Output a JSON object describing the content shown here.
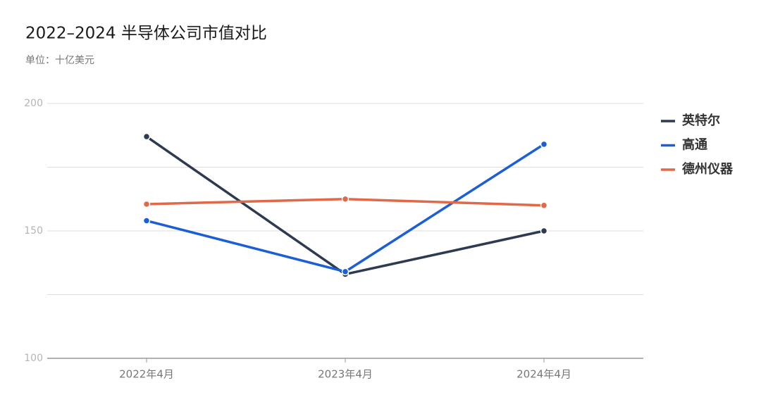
{
  "chart_data": {
    "type": "line",
    "title": "2022–2024 半导体公司市值对比",
    "subtitle": "单位：十亿美元",
    "categories": [
      "2022年4月",
      "2023年4月",
      "2024年4月"
    ],
    "series": [
      {
        "name": "英特尔",
        "color": "#2d3a52",
        "values": [
          187,
          133,
          150
        ]
      },
      {
        "name": "高通",
        "color": "#1b5fd6",
        "values": [
          154,
          134,
          184
        ]
      },
      {
        "name": "德州仪器",
        "color": "#e0694a",
        "values": [
          160.5,
          162.5,
          160
        ]
      }
    ],
    "ylim": [
      100,
      200
    ],
    "yticks": [
      100,
      150,
      200
    ],
    "minor_yticks": [
      125,
      175
    ],
    "grid": true,
    "legend": "right"
  }
}
